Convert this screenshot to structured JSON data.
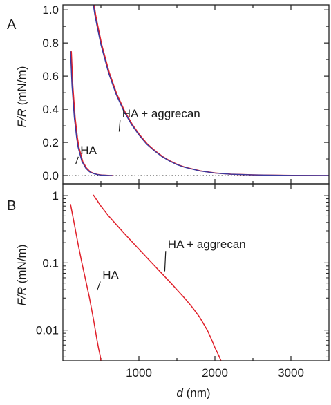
{
  "figure": {
    "xlabel_italic": "d",
    "xlabel_unit": " (nm)",
    "x_ticks": [
      1000,
      2000,
      3000
    ],
    "x_tick_labels": [
      "1000",
      "2000",
      "3000"
    ],
    "xlim": [
      0,
      3500
    ]
  },
  "chart_data": [
    {
      "type": "line",
      "panel": "A",
      "ylabel_italic": "F/R",
      "ylabel_unit": " (mN/m)",
      "ylim": [
        -0.05,
        1.03
      ],
      "yscale": "linear",
      "y_ticks": [
        0.0,
        0.2,
        0.4,
        0.6,
        0.8,
        1.0
      ],
      "y_tick_labels": [
        "0.0",
        "0.2",
        "0.4",
        "0.6",
        "0.8",
        "1.0"
      ],
      "zero_line": "dotted",
      "series": [
        {
          "name": "HA",
          "color_red": "#e0202a",
          "color_blue": "#3a3aa0",
          "x": [
            100,
            120,
            150,
            180,
            200,
            250,
            300,
            350,
            400,
            450,
            500,
            550,
            600,
            650
          ],
          "y": [
            0.75,
            0.54,
            0.35,
            0.23,
            0.17,
            0.085,
            0.045,
            0.022,
            0.012,
            0.006,
            0.003,
            0.0015,
            0.0005,
            0.0
          ]
        },
        {
          "name": "HA + aggrecan",
          "color_red": "#e0202a",
          "color_blue": "#3a3aa0",
          "x": [
            400,
            420,
            450,
            500,
            600,
            700,
            800,
            900,
            1000,
            1100,
            1200,
            1300,
            1400,
            1500,
            1600,
            1800,
            2000,
            2200,
            2500,
            3000,
            3500
          ],
          "y": [
            1.03,
            0.97,
            0.9,
            0.79,
            0.62,
            0.49,
            0.39,
            0.31,
            0.245,
            0.19,
            0.15,
            0.115,
            0.088,
            0.066,
            0.05,
            0.028,
            0.015,
            0.008,
            0.004,
            0.001,
            0.0
          ]
        }
      ],
      "annotations": [
        {
          "text": "HA",
          "x": 230,
          "y": 0.13,
          "point_x": 170,
          "point_y": 0.07
        },
        {
          "text": "HA + aggrecan",
          "x": 780,
          "y": 0.35,
          "point_x": 740,
          "point_y": 0.265
        }
      ]
    },
    {
      "type": "line",
      "panel": "B",
      "ylabel_italic": "F/R",
      "ylabel_unit": " (mN/m)",
      "ylim": [
        0.0035,
        1.5
      ],
      "yscale": "log",
      "y_ticks": [
        0.01,
        0.1,
        1
      ],
      "y_tick_labels": [
        "0.01",
        "0.1",
        "1"
      ],
      "series": [
        {
          "name": "HA",
          "color": "#e0202a",
          "x": [
            100,
            150,
            200,
            250,
            300,
            350,
            400,
            430,
            450,
            470,
            490,
            500
          ],
          "y": [
            0.75,
            0.38,
            0.19,
            0.1,
            0.055,
            0.03,
            0.015,
            0.0095,
            0.007,
            0.0053,
            0.0042,
            0.0035
          ]
        },
        {
          "name": "HA + aggrecan",
          "color": "#e0202a",
          "x": [
            400,
            500,
            600,
            800,
            1000,
            1200,
            1400,
            1500,
            1600,
            1700,
            1800,
            1900,
            1950,
            2000,
            2050,
            2080
          ],
          "y": [
            1.03,
            0.7,
            0.5,
            0.28,
            0.16,
            0.092,
            0.053,
            0.04,
            0.03,
            0.022,
            0.0155,
            0.01,
            0.0075,
            0.0055,
            0.0042,
            0.0035
          ]
        }
      ],
      "annotations": [
        {
          "text": "HA",
          "x": 520,
          "y": 0.058,
          "point_x": 450,
          "point_y": 0.039
        },
        {
          "text": "HA + aggrecan",
          "x": 1380,
          "y": 0.165,
          "point_x": 1340,
          "point_y": 0.075
        }
      ]
    }
  ]
}
